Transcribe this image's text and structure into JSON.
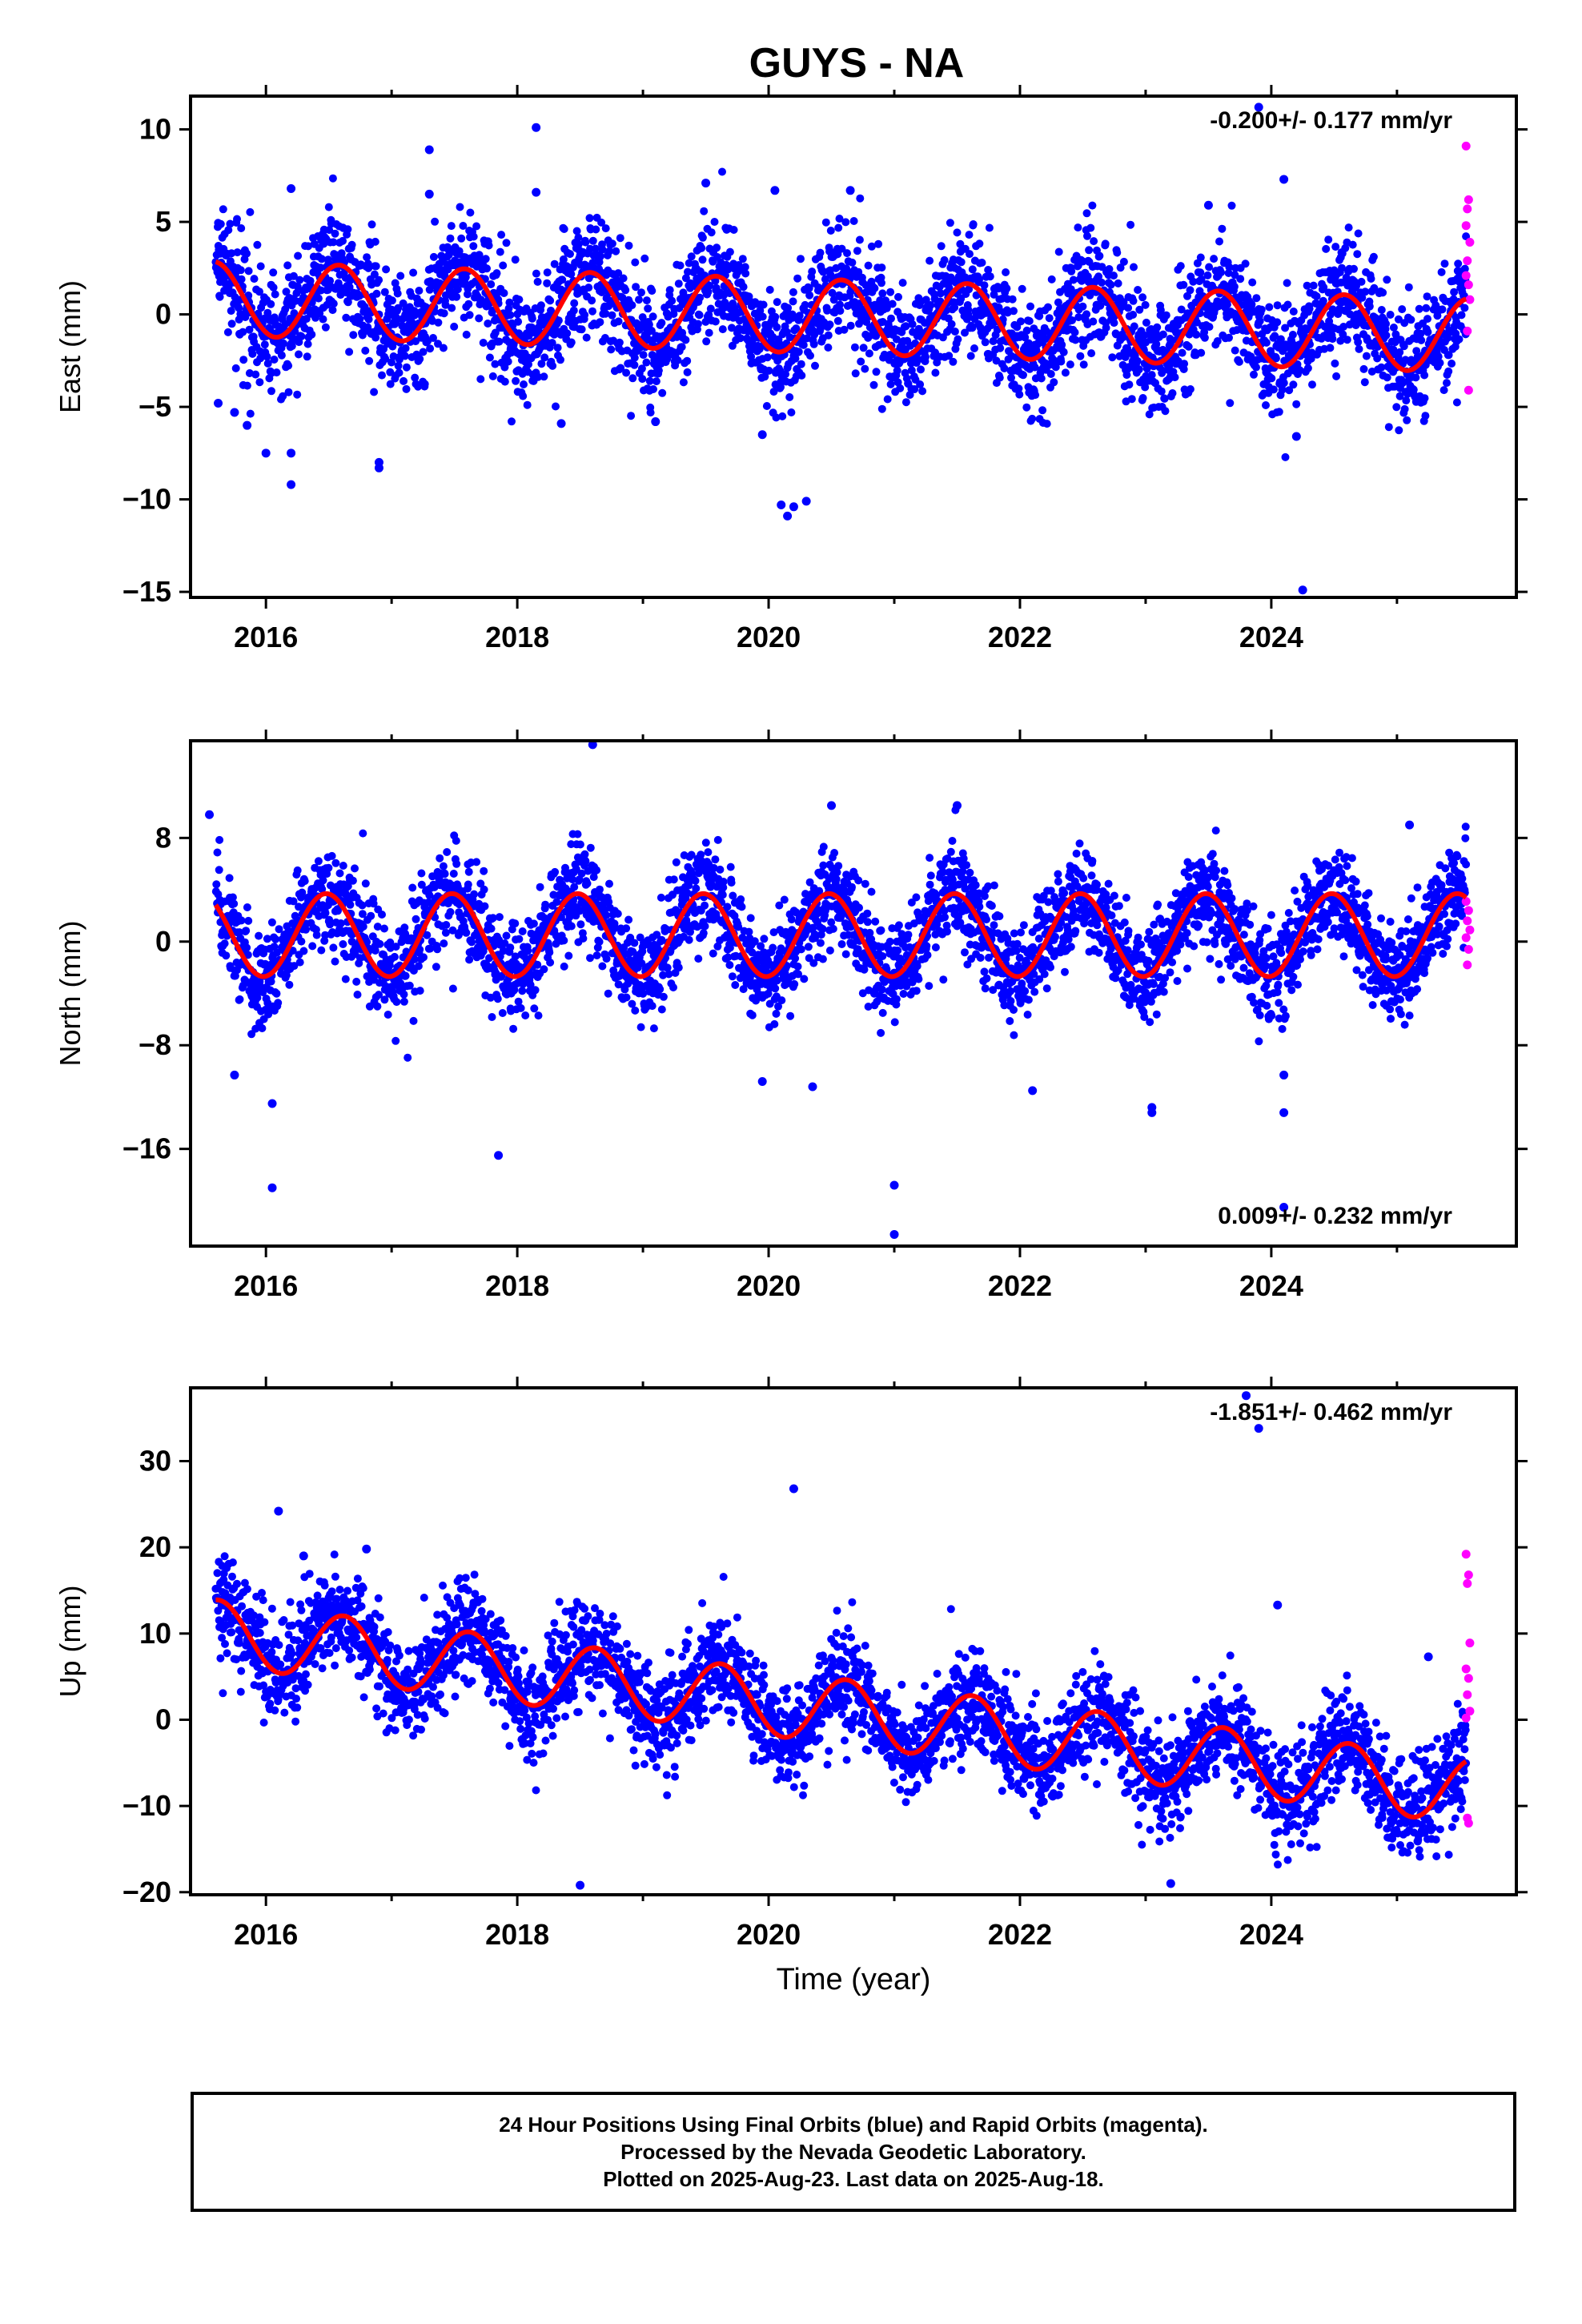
{
  "title": "GUYS - NA",
  "footer": {
    "line1": "24 Hour Positions Using Final Orbits (blue) and Rapid Orbits (magenta).",
    "line2": "Processed by the Nevada Geodetic Laboratory.",
    "line3": "Plotted on 2025-Aug-23. Last data on 2025-Aug-18."
  },
  "colors": {
    "final": "#0000ff",
    "rapid": "#ff00ff",
    "model": "#ff0000",
    "frame": "#000000"
  },
  "chart_data": [
    {
      "type": "scatter",
      "ylabel": "East (mm)",
      "xlabel": "",
      "rate_label": "-0.200+/- 0.177 mm/yr",
      "rate_position": "top-right",
      "xlim": [
        2015.4,
        2025.95
      ],
      "ylim": [
        -15.3,
        11.8
      ],
      "xticks": [
        2016,
        2018,
        2020,
        2022,
        2024
      ],
      "yticks": [
        -15,
        -10,
        -5,
        0,
        5,
        10
      ],
      "ytick_labels": [
        "−15",
        "−10",
        "−5",
        "0",
        "5",
        "10"
      ],
      "model": {
        "offset": 0.9,
        "rate": -0.2,
        "amplitude": 2.0,
        "phase_year_fraction": 0.58
      },
      "scatter_sigma": 1.6,
      "outliers": [
        [
          2015.62,
          -4.8
        ],
        [
          2015.75,
          -5.3
        ],
        [
          2015.85,
          -6.0
        ],
        [
          2016.0,
          -7.5
        ],
        [
          2016.2,
          6.8
        ],
        [
          2016.2,
          -7.5
        ],
        [
          2016.2,
          -9.2
        ],
        [
          2016.9,
          -8.0
        ],
        [
          2016.9,
          -8.3
        ],
        [
          2017.3,
          8.9
        ],
        [
          2017.3,
          6.5
        ],
        [
          2018.15,
          10.1
        ],
        [
          2018.15,
          6.6
        ],
        [
          2018.35,
          -5.9
        ],
        [
          2019.1,
          -5.8
        ],
        [
          2019.5,
          7.1
        ],
        [
          2019.95,
          -6.5
        ],
        [
          2020.05,
          6.7
        ],
        [
          2020.1,
          -10.3
        ],
        [
          2020.15,
          -10.9
        ],
        [
          2020.2,
          -10.4
        ],
        [
          2020.3,
          -10.1
        ],
        [
          2020.65,
          6.7
        ],
        [
          2023.5,
          5.9
        ],
        [
          2023.9,
          11.2
        ],
        [
          2024.1,
          7.3
        ],
        [
          2024.25,
          -14.9
        ],
        [
          2024.2,
          -6.6
        ]
      ],
      "rapid_points": [
        [
          2025.55,
          9.1
        ],
        [
          2025.57,
          6.2
        ],
        [
          2025.56,
          5.7
        ],
        [
          2025.55,
          4.8
        ],
        [
          2025.58,
          3.9
        ],
        [
          2025.56,
          2.9
        ],
        [
          2025.55,
          2.1
        ],
        [
          2025.57,
          1.6
        ],
        [
          2025.58,
          0.8
        ],
        [
          2025.56,
          -0.9
        ],
        [
          2025.57,
          -4.1
        ]
      ]
    },
    {
      "type": "scatter",
      "ylabel": "North (mm)",
      "xlabel": "",
      "rate_label": "0.009+/- 0.232 mm/yr",
      "rate_position": "bottom-right",
      "xlim": [
        2015.4,
        2025.95
      ],
      "ylim": [
        -23.5,
        15.5
      ],
      "xticks": [
        2016,
        2018,
        2020,
        2022,
        2024
      ],
      "yticks": [
        -16,
        -8,
        0,
        8
      ],
      "ytick_labels": [
        "−16",
        "−8",
        "0",
        "8"
      ],
      "model": {
        "offset": 0.5,
        "rate": 0.0,
        "amplitude": 3.2,
        "phase_year_fraction": 0.48
      },
      "scatter_sigma": 1.9,
      "outliers": [
        [
          2015.55,
          9.8
        ],
        [
          2015.75,
          -10.3
        ],
        [
          2016.05,
          -12.5
        ],
        [
          2016.05,
          -19.0
        ],
        [
          2017.85,
          -16.5
        ],
        [
          2018.6,
          15.2
        ],
        [
          2019.95,
          -10.8
        ],
        [
          2020.35,
          -11.2
        ],
        [
          2021.0,
          -18.8
        ],
        [
          2021.0,
          -22.6
        ],
        [
          2022.1,
          -11.5
        ],
        [
          2023.05,
          -12.8
        ],
        [
          2023.05,
          -13.2
        ],
        [
          2024.1,
          -13.2
        ],
        [
          2024.1,
          -20.5
        ],
        [
          2024.1,
          -10.3
        ],
        [
          2025.1,
          9.0
        ],
        [
          2020.5,
          10.5
        ],
        [
          2021.5,
          10.5
        ]
      ],
      "rapid_points": [
        [
          2025.55,
          3.1
        ],
        [
          2025.57,
          2.4
        ],
        [
          2025.56,
          1.6
        ],
        [
          2025.58,
          0.9
        ],
        [
          2025.55,
          0.3
        ],
        [
          2025.57,
          -0.6
        ],
        [
          2025.56,
          -1.8
        ]
      ]
    },
    {
      "type": "scatter",
      "ylabel": "Up (mm)",
      "xlabel": "Time (year)",
      "rate_label": "-1.851+/- 0.462 mm/yr",
      "rate_position": "top-right",
      "xlim": [
        2015.4,
        2025.95
      ],
      "ylim": [
        -20.3,
        38.5
      ],
      "xticks": [
        2016,
        2018,
        2020,
        2022,
        2024
      ],
      "yticks": [
        -20,
        -10,
        0,
        10,
        20,
        30
      ],
      "ytick_labels": [
        "−20",
        "−10",
        "0",
        "10",
        "20",
        "30"
      ],
      "model": {
        "offset": 10.5,
        "rate": -1.85,
        "amplitude": 3.8,
        "phase_year_fraction": 0.62
      },
      "scatter_sigma": 3.0,
      "outliers": [
        [
          2016.1,
          24.2
        ],
        [
          2018.5,
          -19.2
        ],
        [
          2020.2,
          26.8
        ],
        [
          2023.2,
          -19.0
        ],
        [
          2023.8,
          37.6
        ],
        [
          2023.9,
          33.8
        ],
        [
          2024.05,
          13.3
        ],
        [
          2025.25,
          7.3
        ],
        [
          2016.3,
          19.0
        ],
        [
          2016.8,
          19.8
        ]
      ],
      "rapid_points": [
        [
          2025.55,
          19.2
        ],
        [
          2025.57,
          16.8
        ],
        [
          2025.56,
          15.8
        ],
        [
          2025.58,
          8.9
        ],
        [
          2025.55,
          5.9
        ],
        [
          2025.57,
          4.8
        ],
        [
          2025.56,
          2.9
        ],
        [
          2025.58,
          1.0
        ],
        [
          2025.55,
          0.2
        ],
        [
          2025.56,
          -11.4
        ],
        [
          2025.57,
          -12.0
        ]
      ]
    }
  ]
}
